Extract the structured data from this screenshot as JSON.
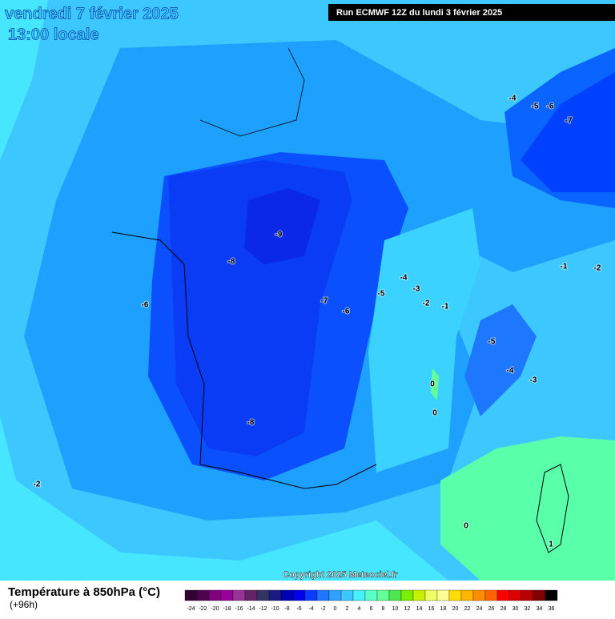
{
  "header": {
    "date": "vendredi 7 février 2025",
    "time": "13:00 locale",
    "run": "Run ECMWF 12Z du lundi 3 février 2025"
  },
  "contour_labels": [
    -4,
    -5,
    -6,
    -7,
    -9,
    -8,
    -6,
    -4,
    -3,
    -5,
    -7,
    -6,
    -2,
    -1,
    -1,
    -2,
    -5,
    -4,
    -3,
    0,
    0,
    -8,
    -2,
    0,
    1
  ],
  "copyright": "Copyright 2025 Meteociel.fr",
  "legend": {
    "title": "Température à 850hPa (°C)",
    "lead": "(+96h)",
    "ticks": [
      -24,
      -22,
      -20,
      -18,
      -16,
      -14,
      -12,
      -10,
      -8,
      -6,
      -4,
      -2,
      0,
      2,
      4,
      6,
      8,
      10,
      12,
      14,
      16,
      18,
      20,
      22,
      24,
      26,
      28,
      30,
      32,
      34,
      36
    ],
    "colors": [
      "#330033",
      "#4d004d",
      "#800080",
      "#990099",
      "#993399",
      "#662266",
      "#333366",
      "#1a1a80",
      "#0000b3",
      "#0000e6",
      "#0a3cff",
      "#1e78ff",
      "#32a0ff",
      "#3cc8ff",
      "#46f0ff",
      "#5affc8",
      "#64ff96",
      "#50e650",
      "#78f000",
      "#c8f000",
      "#f0ff64",
      "#ffff96",
      "#ffdc00",
      "#ffb400",
      "#ff8c00",
      "#ff6400",
      "#ff0000",
      "#dc0000",
      "#b40000",
      "#800000",
      "#000000"
    ]
  }
}
